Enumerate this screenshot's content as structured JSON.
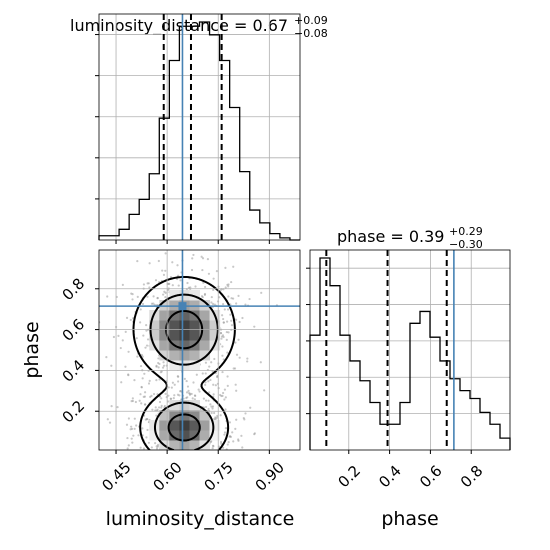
{
  "chart_data": {
    "type": "corner",
    "truth_color": "#4682b4",
    "hist_color": "#000000",
    "quantile_style": "dashed",
    "grid": true,
    "parameters": [
      {
        "name": "luminosity_distance",
        "xlabel": "luminosity_distance",
        "title_base": "luminosity_distance = 0.67",
        "title_plus": "+0.09",
        "title_minus": "−0.08",
        "range": [
          0.4,
          0.99
        ],
        "ticks": [
          {
            "value": 0.45,
            "label": "0.45"
          },
          {
            "value": 0.6,
            "label": "0.60"
          },
          {
            "value": 0.75,
            "label": "0.75"
          },
          {
            "value": 0.9,
            "label": "0.90"
          }
        ],
        "truth": 0.645,
        "quantiles": [
          0.59,
          0.67,
          0.76
        ],
        "hist": {
          "bin_start": 0.4,
          "bin_width": 0.0295,
          "max": 1.02,
          "counts": [
            0.02,
            0.02,
            0.05,
            0.12,
            0.19,
            0.31,
            0.57,
            0.84,
            1.0,
            1.0,
            1.02,
            0.96,
            0.84,
            0.62,
            0.32,
            0.14,
            0.08,
            0.03,
            0.01,
            0.0
          ]
        }
      },
      {
        "name": "phase",
        "xlabel": "phase",
        "ylabel": "phase",
        "title_base": "phase = 0.39",
        "title_plus": "+0.29",
        "title_minus": "−0.30",
        "range": [
          0.01,
          0.99
        ],
        "ticks": [
          {
            "value": 0.2,
            "label": "0.2"
          },
          {
            "value": 0.4,
            "label": "0.4"
          },
          {
            "value": 0.6,
            "label": "0.6"
          },
          {
            "value": 0.8,
            "label": "0.8"
          }
        ],
        "truth": 0.715,
        "quantiles": [
          0.09,
          0.39,
          0.68
        ],
        "hist": {
          "bin_start": 0.01,
          "bin_width": 0.049,
          "max": 0.97,
          "counts": [
            0.58,
            0.97,
            0.83,
            0.58,
            0.45,
            0.35,
            0.24,
            0.13,
            0.13,
            0.24,
            0.64,
            0.7,
            0.57,
            0.45,
            0.36,
            0.3,
            0.26,
            0.19,
            0.13,
            0.06
          ]
        }
      }
    ],
    "joint": {
      "x_param": "luminosity_distance",
      "y_param": "phase",
      "contour_levels": 3,
      "modes": [
        {
          "x": 0.65,
          "y": 0.6,
          "sx": 0.075,
          "sy": 0.13
        },
        {
          "x": 0.65,
          "y": 0.12,
          "sx": 0.065,
          "sy": 0.09
        }
      ]
    }
  }
}
